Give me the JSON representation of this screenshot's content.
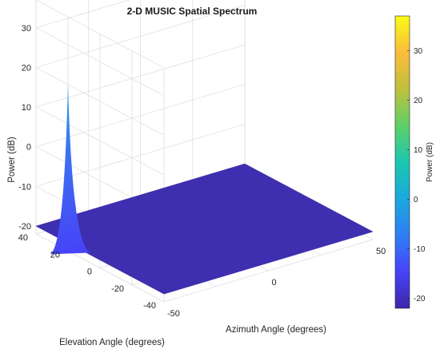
{
  "chart_data": {
    "type": "surface",
    "title": "2-D MUSIC Spatial Spectrum",
    "xlabel": "Azimuth Angle (degrees)",
    "ylabel": "Elevation Angle (degrees)",
    "zlabel": "Power (dB)",
    "xlim": [
      -50,
      50
    ],
    "ylim": [
      -40,
      40
    ],
    "zlim": [
      -22,
      37
    ],
    "x_ticks": [
      "-50",
      "0",
      "50"
    ],
    "y_ticks": [
      "-40",
      "-20",
      "0",
      "20",
      "40"
    ],
    "z_ticks": [
      "-20",
      "-10",
      "0",
      "10",
      "20",
      "30"
    ],
    "floor_level": -20,
    "peak": {
      "azimuth": -50,
      "elevation": 20,
      "power": 20
    },
    "colorbar": {
      "label": "Power (dB)",
      "range": [
        -22,
        37
      ],
      "ticks": [
        "-20",
        "-10",
        "0",
        "10",
        "20",
        "30"
      ],
      "colormap": [
        "#3e26a8",
        "#4743f8",
        "#2f7ef4",
        "#1aa9dc",
        "#1ac7b0",
        "#5ed068",
        "#c0c03c",
        "#fbbc3c",
        "#f9fb15"
      ]
    },
    "grid": true
  }
}
